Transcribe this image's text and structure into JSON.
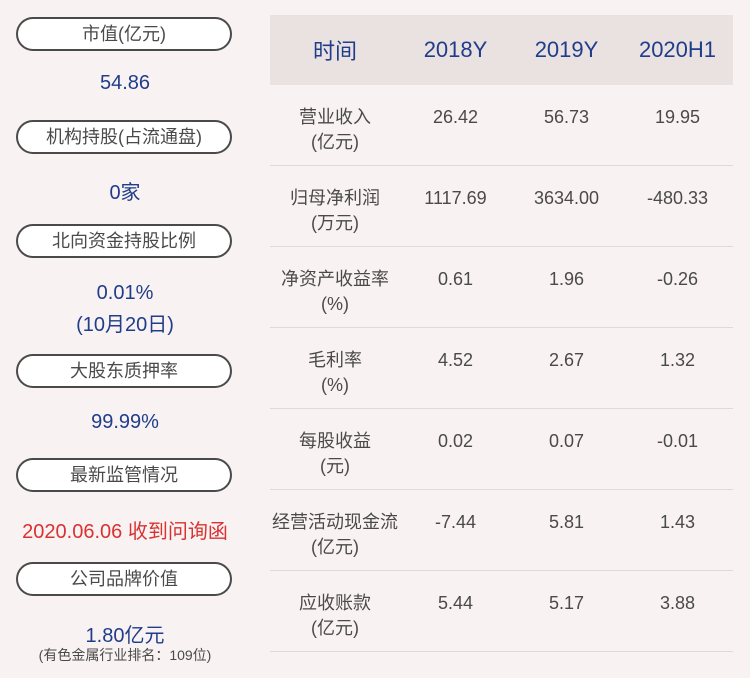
{
  "left_panel": {
    "market_cap_label": "市值(亿元)",
    "market_cap_value": "54.86",
    "institution_label": "机构持股(占流通盘)",
    "institution_value": "0家",
    "northbound_label": "北向资金持股比例",
    "northbound_value": "0.01%",
    "northbound_date": "(10月20日)",
    "pledge_label": "大股东质押率",
    "pledge_value": "99.99%",
    "regulation_label": "最新监管情况",
    "regulation_value": "2020.06.06 收到问询函",
    "brand_label": "公司品牌价值",
    "brand_value": "1.80亿元",
    "brand_rank": "(有色金属行业排名：109位)"
  },
  "table": {
    "headers": [
      "时间",
      "2018Y",
      "2019Y",
      "2020H1"
    ],
    "rows": [
      {
        "label1": "营业收入",
        "label2": "(亿元)",
        "values": [
          "26.42",
          "56.73",
          "19.95"
        ]
      },
      {
        "label1": "归母净利润",
        "label2": "(万元)",
        "values": [
          "1117.69",
          "3634.00",
          "-480.33"
        ]
      },
      {
        "label1": "净资产收益率",
        "label2": "(%)",
        "values": [
          "0.61",
          "1.96",
          "-0.26"
        ]
      },
      {
        "label1": "毛利率",
        "label2": "(%)",
        "values": [
          "4.52",
          "2.67",
          "1.32"
        ]
      },
      {
        "label1": "每股收益",
        "label2": "(元)",
        "values": [
          "0.02",
          "0.07",
          "-0.01"
        ]
      },
      {
        "label1": "经营活动现金流",
        "label2": "(亿元)",
        "values": [
          "-7.44",
          "5.81",
          "1.43"
        ]
      },
      {
        "label1": "应收账款",
        "label2": "(亿元)",
        "values": [
          "5.44",
          "5.17",
          "3.88"
        ]
      }
    ]
  },
  "colors": {
    "background": "#f9f2f2",
    "value_blue": "#1f3d8a",
    "alert_red": "#d93232",
    "header_bg": "#eae1e1"
  }
}
